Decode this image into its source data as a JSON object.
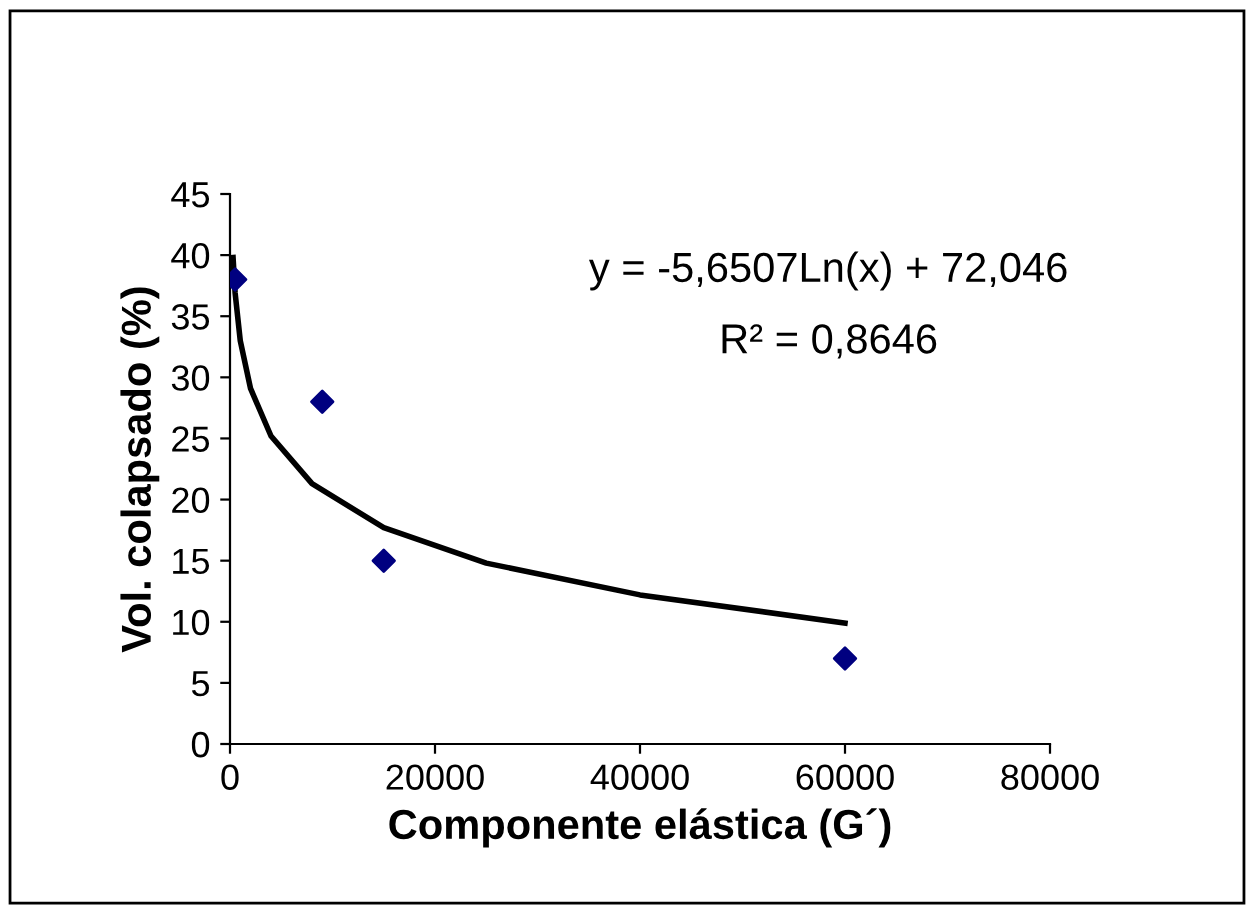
{
  "chart_data": {
    "type": "scatter",
    "xlabel": "Componente elástica (G´)",
    "ylabel": "Vol. colapsado (%)",
    "xlim": [
      0,
      80000
    ],
    "xticks": [
      0,
      20000,
      40000,
      60000,
      80000
    ],
    "ylim": [
      0,
      45
    ],
    "yticks": [
      0,
      5,
      10,
      15,
      20,
      25,
      30,
      35,
      40,
      45
    ],
    "grid": false,
    "legend": false,
    "marker": "diamond",
    "annotations": [
      "y = -5,6507Ln(x) + 72,046",
      "R² = 0,8646"
    ],
    "series": [
      {
        "color": "#000080",
        "x": [
          500,
          9000,
          15000,
          60000
        ],
        "values": [
          38,
          28,
          15,
          7
        ]
      },
      {
        "type": "line",
        "color": "#000000",
        "marker": "none",
        "line_style": "solid",
        "x": [
          300,
          500,
          1000,
          2000,
          4000,
          8000,
          15000,
          25000,
          40000,
          60000
        ],
        "values": [
          39.8,
          36.9,
          33.0,
          29.1,
          25.2,
          21.3,
          17.7,
          14.8,
          12.2,
          9.9
        ]
      }
    ]
  }
}
